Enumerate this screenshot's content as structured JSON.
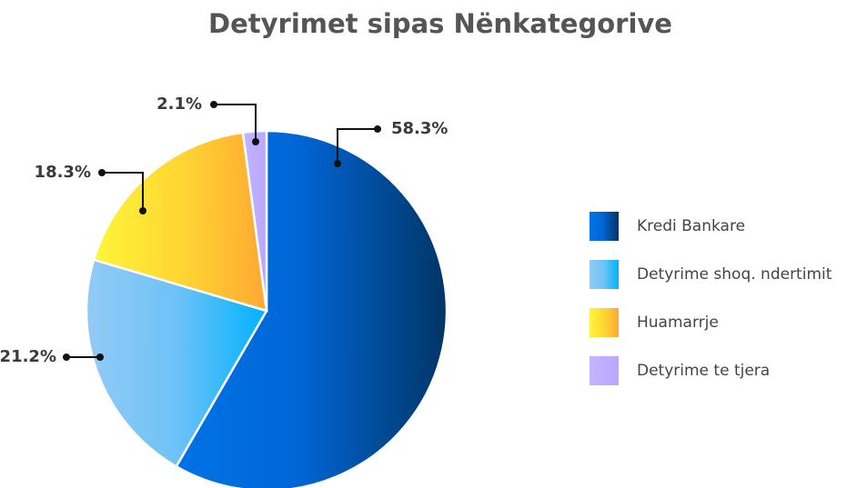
{
  "chart_data": {
    "type": "pie",
    "title": "Detyrimet sipas Nënkategorive",
    "categories": [
      "Kredi Bankare",
      "Detyrime shoq. ndertimit",
      "Huamarrje",
      "Detyrime te tjera"
    ],
    "values": [
      58.3,
      21.2,
      18.3,
      2.1
    ],
    "value_labels": [
      "58.3%",
      "21.2%",
      "18.3%",
      "2.1%"
    ],
    "colors": [
      "#0066d6",
      "#6ec2f7",
      "#ffd633",
      "#c3b3ff"
    ],
    "legend": "right"
  }
}
